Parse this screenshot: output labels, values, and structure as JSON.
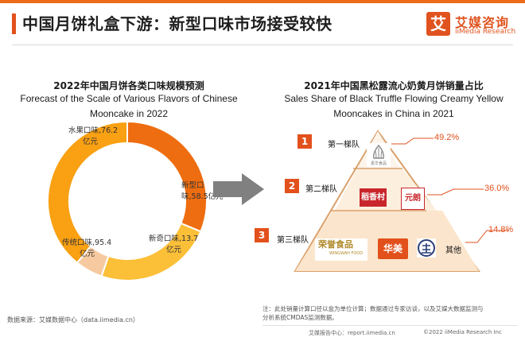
{
  "header": {
    "title": "中国月饼礼盒下游：新型口味市场接受较快",
    "logo_mark": "艾",
    "logo_cn": "艾媒咨询",
    "logo_en": "iiMedia Research"
  },
  "colors": {
    "accent": "#e2501c",
    "orange_dark": "#ee6d10",
    "orange": "#f9a013",
    "orange_light": "#fbbf38",
    "peach": "#f6c9a0"
  },
  "chart_data": [
    {
      "type": "pie",
      "title_cn": "2022年中国月饼各类口味规模预测",
      "title_en_line1": "Forecast of the Scale of Various Flavors of Chinese",
      "title_en_line2": "Mooncake in 2022",
      "unit": "亿元",
      "slices": [
        {
          "name": "水果口味",
          "value": 76.2,
          "color": "#ee6d10",
          "label_line1": "水果口味,76.2",
          "label_line2": "亿元"
        },
        {
          "name": "新型口味",
          "value": 58.5,
          "color": "#fbbf38",
          "label_line1": "新型口",
          "label_line2": "味,58.5亿元"
        },
        {
          "name": "新奇口味",
          "value": 13.7,
          "color": "#f6c9a0",
          "label_line1": "新奇口味,13.7",
          "label_line2": "亿元"
        },
        {
          "name": "传统口味",
          "value": 95.4,
          "color": "#f9a013",
          "label_line1": "传统口味,95.4",
          "label_line2": "亿元"
        }
      ]
    },
    {
      "type": "bar",
      "title_cn": "2021年中国黑松露流心奶黄月饼销量占比",
      "title_en_line1": "Sales Share of Black Truffle Flowing  Creamy Yellow",
      "title_en_line2": "Mooncakes in China in 2021",
      "categories": [
        "第一梯队",
        "第二梯队",
        "第三梯队"
      ],
      "values": [
        49.2,
        36.0,
        14.8
      ],
      "value_labels": [
        "49.2%",
        "36.0%",
        "14.8%"
      ],
      "unit": "%",
      "tier_numbers": [
        "1",
        "2",
        "3"
      ],
      "brands": {
        "tier1_text": "嘉华食品",
        "tier2_a": "稻香村",
        "tier2_b": "元朗",
        "tier3_a": "荣誉食品",
        "tier3_a_sub": "WINGWAH FOOD",
        "tier3_b": "华美",
        "tier3_c": "美心",
        "tier3_other": "其他"
      }
    }
  ],
  "footer": {
    "source": "数据来源：艾媒数据中心（data.iimedia.cn）",
    "note_line1": "注：此处销量计算口径以盒为单位计算；数据通过专家访谈，以及艾媒大数据监测与",
    "note_line2": "分析系统CMDAS监测数据。",
    "footer_left": "艾媒报告中心：report.iimedia.cn",
    "footer_right": "©2022 iiMedia Research Inc"
  }
}
